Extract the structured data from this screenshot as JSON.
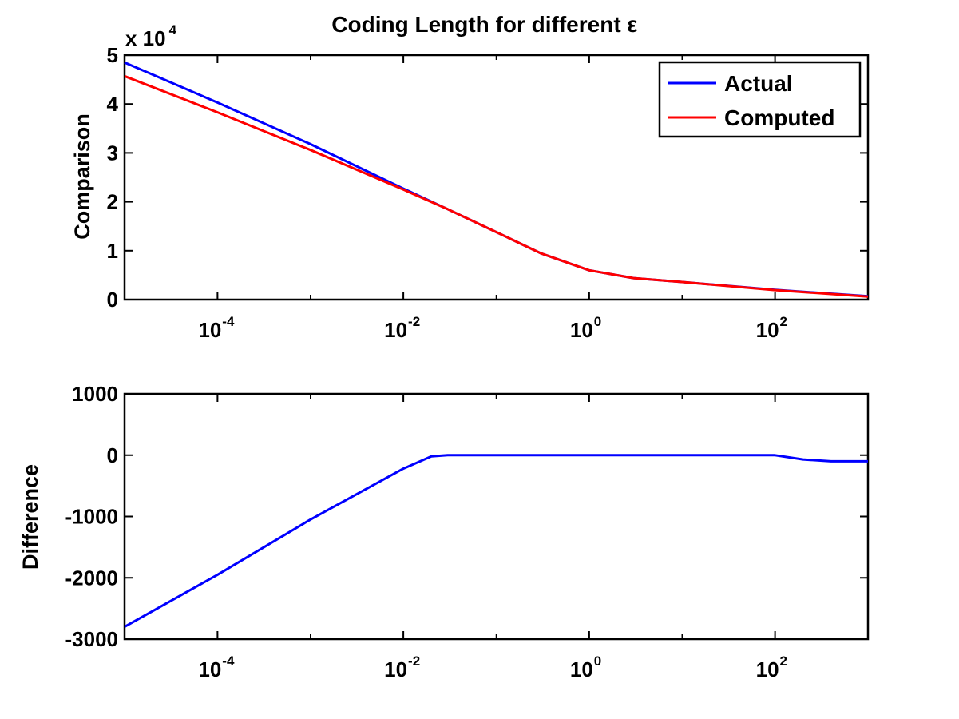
{
  "colors": {
    "actual": "#0000ff",
    "computed": "#ff0000",
    "axes": "#000000"
  },
  "chart_data": [
    {
      "type": "line",
      "title": "Coding Length for different ε",
      "xlabel": "",
      "ylabel": "Comparison",
      "xscale": "log",
      "xlim": [
        1e-05,
        1000
      ],
      "ylim": [
        0,
        50000
      ],
      "y_multiplier_label": "x 10",
      "y_multiplier_exp": "4",
      "xticks": [
        {
          "value": 0.0001,
          "base": "10",
          "exp": "-4"
        },
        {
          "value": 0.01,
          "base": "10",
          "exp": "-2"
        },
        {
          "value": 1,
          "base": "10",
          "exp": "0"
        },
        {
          "value": 100,
          "base": "10",
          "exp": "2"
        }
      ],
      "yticks": [
        {
          "value": 0,
          "label": "0"
        },
        {
          "value": 10000,
          "label": "1"
        },
        {
          "value": 20000,
          "label": "2"
        },
        {
          "value": 30000,
          "label": "3"
        },
        {
          "value": 40000,
          "label": "4"
        },
        {
          "value": 50000,
          "label": "5"
        }
      ],
      "legend": {
        "placement": "top-right",
        "entries": [
          "Actual",
          "Computed"
        ]
      },
      "series": [
        {
          "name": "Actual",
          "color": "#0000ff",
          "x": [
            1e-05,
            0.0001,
            0.001,
            0.01,
            0.03,
            0.1,
            0.3,
            1,
            3,
            10,
            100,
            1000
          ],
          "y": [
            48500,
            40300,
            31800,
            22700,
            18500,
            13800,
            9500,
            6000,
            4400,
            3600,
            2000,
            700
          ]
        },
        {
          "name": "Computed",
          "color": "#ff0000",
          "x": [
            1e-05,
            0.0001,
            0.001,
            0.01,
            0.03,
            0.1,
            0.3,
            1,
            3,
            10,
            100,
            1000
          ],
          "y": [
            45700,
            38300,
            30600,
            22500,
            18500,
            13800,
            9500,
            6000,
            4400,
            3600,
            1950,
            600
          ]
        }
      ]
    },
    {
      "type": "line",
      "title": "",
      "xlabel": "",
      "ylabel": "Difference",
      "xscale": "log",
      "xlim": [
        1e-05,
        1000
      ],
      "ylim": [
        -3000,
        1000
      ],
      "xticks": [
        {
          "value": 0.0001,
          "base": "10",
          "exp": "-4"
        },
        {
          "value": 0.01,
          "base": "10",
          "exp": "-2"
        },
        {
          "value": 1,
          "base": "10",
          "exp": "0"
        },
        {
          "value": 100,
          "base": "10",
          "exp": "2"
        }
      ],
      "yticks": [
        {
          "value": -3000,
          "label": "-3000"
        },
        {
          "value": -2000,
          "label": "-2000"
        },
        {
          "value": -1000,
          "label": "-1000"
        },
        {
          "value": 0,
          "label": "0"
        },
        {
          "value": 1000,
          "label": "1000"
        }
      ],
      "series": [
        {
          "color": "#0000ff",
          "x": [
            1e-05,
            0.0001,
            0.001,
            0.01,
            0.02,
            0.03,
            0.1,
            1,
            10,
            100,
            200,
            400,
            1000
          ],
          "y": [
            -2800,
            -1950,
            -1050,
            -220,
            -20,
            0,
            0,
            0,
            0,
            0,
            -70,
            -100,
            -100
          ]
        }
      ]
    }
  ]
}
